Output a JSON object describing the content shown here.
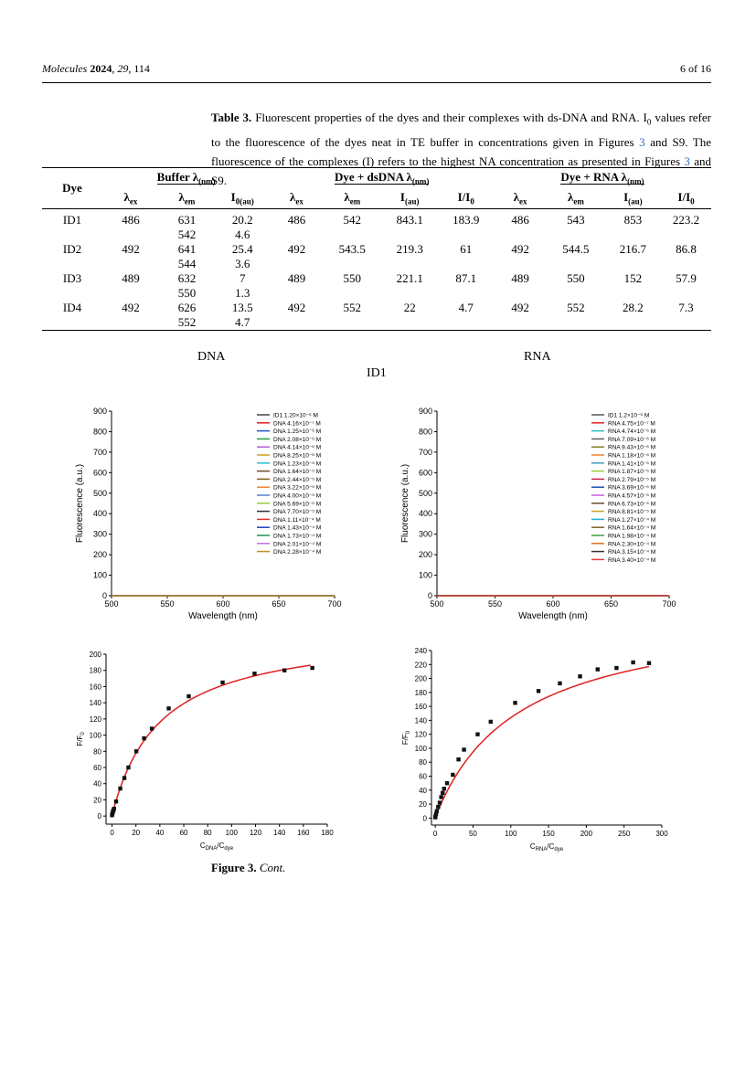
{
  "header": {
    "journal": "Molecules",
    "year": "2024",
    "volume": "29",
    "article": "114",
    "page": "6 of 16"
  },
  "caption": {
    "label": "Table 3.",
    "text1": " Fluorescent properties of the dyes and their complexes with ds-DNA and RNA. I",
    "sub0": "0",
    "text2": " values refer to the fluorescence of the dyes neat in TE buffer in concentrations given in Figures ",
    "ref1": "3",
    "text3": " and S9. The fluorescence of the complexes (I) refers to the highest NA concentration as presented in Figures ",
    "ref2": "3",
    "text4": " and S9."
  },
  "table": {
    "groups": [
      "Dye",
      "Buffer λ(nm)",
      "Dye + dsDNA λ(nm)",
      "Dye + RNA λ(nm)"
    ],
    "columns": [
      "λex",
      "λem",
      "I0(au)",
      "λex",
      "λem",
      "I(au)",
      "I/I0",
      "λex",
      "λem",
      "I(au)",
      "I/I0"
    ],
    "rows": [
      {
        "dye": "ID1",
        "b_ex": "486",
        "b_em": [
          "631",
          "542"
        ],
        "b_i0": [
          "20.2",
          "4.6"
        ],
        "d_ex": "486",
        "d_em": "542",
        "d_i": "843.1",
        "d_ratio": "183.9",
        "r_ex": "486",
        "r_em": "543",
        "r_i": "853",
        "r_ratio": "223.2"
      },
      {
        "dye": "ID2",
        "b_ex": "492",
        "b_em": [
          "641",
          "544"
        ],
        "b_i0": [
          "25.4",
          "3.6"
        ],
        "d_ex": "492",
        "d_em": "543.5",
        "d_i": "219.3",
        "d_ratio": "61",
        "r_ex": "492",
        "r_em": "544.5",
        "r_i": "216.7",
        "r_ratio": "86.8"
      },
      {
        "dye": "ID3",
        "b_ex": "489",
        "b_em": [
          "632",
          "550"
        ],
        "b_i0": [
          "7",
          "1.3"
        ],
        "d_ex": "489",
        "d_em": "550",
        "d_i": "221.1",
        "d_ratio": "87.1",
        "r_ex": "489",
        "r_em": "550",
        "r_i": "152",
        "r_ratio": "57.9"
      },
      {
        "dye": "ID4",
        "b_ex": "492",
        "b_em": [
          "626",
          "552"
        ],
        "b_i0": [
          "13.5",
          "4.7"
        ],
        "d_ex": "492",
        "d_em": "552",
        "d_i": "22",
        "d_ratio": "4.7",
        "r_ex": "492",
        "r_em": "552",
        "r_i": "28.2",
        "r_ratio": "7.3"
      }
    ]
  },
  "figure_labels": {
    "left": "DNA",
    "right": "RNA",
    "center": "ID1"
  },
  "figure_caption": {
    "label": "Figure 3.",
    "text": "Cont."
  },
  "chart_data": [
    {
      "type": "line",
      "xlabel": "Wavelength (nm)",
      "ylabel": "Fluorescence (a.u.)",
      "xlim": [
        500,
        700
      ],
      "ylim": [
        0,
        900
      ],
      "xticks": [
        500,
        550,
        600,
        650,
        700
      ],
      "yticks": [
        0,
        100,
        200,
        300,
        400,
        500,
        600,
        700,
        800,
        900
      ],
      "peak_x": 542,
      "legend": "top-right",
      "series": [
        {
          "name": "ID1 1.20×10⁻⁶ M",
          "peak": 20,
          "color": "#444444"
        },
        {
          "name": "DNA 4.16×10⁻⁷ M",
          "peak": 35,
          "color": "#e02020"
        },
        {
          "name": "DNA 1.25×10⁻⁶ M",
          "peak": 50,
          "color": "#2050d0"
        },
        {
          "name": "DNA 2.08×10⁻⁶ M",
          "peak": 65,
          "color": "#20a040"
        },
        {
          "name": "DNA 4.14×10⁻⁶ M",
          "peak": 80,
          "color": "#b060d0"
        },
        {
          "name": "DNA 8.25×10⁻⁶ M",
          "peak": 150,
          "color": "#d0a020"
        },
        {
          "name": "DNA 1.23×10⁻⁵ M",
          "peak": 215,
          "color": "#20c0d0"
        },
        {
          "name": "DNA 1.64×10⁻⁵ M",
          "peak": 275,
          "color": "#6b4a2a"
        },
        {
          "name": "DNA 2.44×10⁻⁵ M",
          "peak": 370,
          "color": "#806010"
        },
        {
          "name": "DNA 3.22×10⁻⁵ M",
          "peak": 435,
          "color": "#f08030"
        },
        {
          "name": "DNA 4.00×10⁻⁵ M",
          "peak": 500,
          "color": "#5080d0"
        },
        {
          "name": "DNA 5.69×10⁻⁵ M",
          "peak": 610,
          "color": "#90d040"
        },
        {
          "name": "DNA 7.70×10⁻⁵ M",
          "peak": 680,
          "color": "#303030"
        },
        {
          "name": "DNA 1.11×10⁻⁴ M",
          "peak": 760,
          "color": "#e03030"
        },
        {
          "name": "DNA 1.43×10⁻⁴ M",
          "peak": 810,
          "color": "#2040c0"
        },
        {
          "name": "DNA 1.73×10⁻⁴ M",
          "peak": 830,
          "color": "#209050"
        },
        {
          "name": "DNA 2.01×10⁻⁴ M",
          "peak": 840,
          "color": "#c070e0"
        },
        {
          "name": "DNA 2.28×10⁻⁴ M",
          "peak": 845,
          "color": "#c09020"
        }
      ]
    },
    {
      "type": "line",
      "xlabel": "Wavelength (nm)",
      "ylabel": "Fluorescence (a.u.)",
      "xlim": [
        500,
        700
      ],
      "ylim": [
        0,
        900
      ],
      "xticks": [
        500,
        550,
        600,
        650,
        700
      ],
      "yticks": [
        0,
        100,
        200,
        300,
        400,
        500,
        600,
        700,
        800,
        900
      ],
      "peak_x": 543,
      "legend": "top-right",
      "series": [
        {
          "name": "ID1   1.2×10⁻⁶ M",
          "peak": 20,
          "color": "#555555"
        },
        {
          "name": "RNA 4.75×10⁻⁷ M",
          "peak": 30,
          "color": "#e02020"
        },
        {
          "name": "RNA 4.74×10⁻⁶ M",
          "peak": 45,
          "color": "#20c0c0"
        },
        {
          "name": "RNA 7.09×10⁻⁶ M",
          "peak": 60,
          "color": "#606060"
        },
        {
          "name": "RNA 9.43×10⁻⁶ M",
          "peak": 75,
          "color": "#808020"
        },
        {
          "name": "RNA 1.18×10⁻⁵ M",
          "peak": 90,
          "color": "#f08030"
        },
        {
          "name": "RNA 1.41×10⁻⁵ M",
          "peak": 110,
          "color": "#40a0c0"
        },
        {
          "name": "RNA 1.87×10⁻⁵ M",
          "peak": 135,
          "color": "#90d040"
        },
        {
          "name": "RNA 2.79×10⁻⁵ M",
          "peak": 160,
          "color": "#d02050"
        },
        {
          "name": "RNA 3.69×10⁻⁵ M",
          "peak": 200,
          "color": "#2050b0"
        },
        {
          "name": "RNA 4.57×10⁻⁵ M",
          "peak": 260,
          "color": "#c060e0"
        },
        {
          "name": "RNA 6.73×10⁻⁵ M",
          "peak": 320,
          "color": "#6b4a2a"
        },
        {
          "name": "RNA 8.81×10⁻⁵ M",
          "peak": 400,
          "color": "#d0a020"
        },
        {
          "name": "RNA 1.27×10⁻⁴ M",
          "peak": 470,
          "color": "#20b0d0"
        },
        {
          "name": "RNA 1.64×10⁻⁴ M",
          "peak": 530,
          "color": "#806030"
        },
        {
          "name": "RNA 1.98×10⁻⁴ M",
          "peak": 630,
          "color": "#40a040"
        },
        {
          "name": "RNA 2.30×10⁻⁴ M",
          "peak": 700,
          "color": "#e07020"
        },
        {
          "name": "RNA 3.15×10⁻⁴ M",
          "peak": 780,
          "color": "#333333"
        },
        {
          "name": "RNA 3.40×10⁻⁴ M",
          "peak": 855,
          "color": "#e04040"
        }
      ]
    },
    {
      "type": "scatter",
      "xlabel": "C_DNA/C_dye",
      "ylabel": "F/F0",
      "xlim": [
        -5,
        180
      ],
      "ylim": [
        -10,
        200
      ],
      "xticks": [
        0,
        20,
        40,
        60,
        80,
        100,
        120,
        140,
        160,
        180
      ],
      "yticks": [
        0,
        20,
        40,
        60,
        80,
        100,
        120,
        140,
        160,
        180,
        200
      ],
      "x": [
        0,
        0.3,
        0.7,
        1.1,
        1.7,
        3.4,
        6.9,
        10.3,
        13.7,
        20.3,
        26.8,
        33.3,
        47.4,
        64.2,
        92.5,
        119.2,
        144.2,
        167.5
      ],
      "y": [
        1,
        3,
        5,
        7,
        9,
        18,
        34,
        47,
        60,
        80,
        96,
        108,
        133,
        148,
        165,
        176,
        180,
        183
      ],
      "fit": {
        "type": "binding",
        "Fmax": 230,
        "K": 40
      }
    },
    {
      "type": "scatter",
      "xlabel": "C_RNA/C_dye",
      "ylabel": "F/F0",
      "xlim": [
        -5,
        300
      ],
      "ylim": [
        -10,
        240
      ],
      "xticks": [
        0,
        50,
        100,
        150,
        200,
        250,
        300
      ],
      "yticks": [
        0,
        20,
        40,
        60,
        80,
        100,
        120,
        140,
        160,
        180,
        200,
        220,
        240
      ],
      "x": [
        0,
        0.4,
        1.1,
        2.0,
        3.9,
        5.9,
        7.9,
        9.8,
        11.7,
        15.6,
        23.3,
        30.8,
        38.1,
        56.1,
        73.4,
        105.8,
        136.7,
        165,
        191.7,
        215,
        240,
        262,
        283
      ],
      "y": [
        1,
        3,
        6,
        10,
        16,
        22,
        30,
        36,
        42,
        50,
        62,
        84,
        98,
        120,
        138,
        165,
        182,
        193,
        203,
        213,
        215,
        223,
        222
      ],
      "fit": {
        "type": "binding",
        "Fmax": 300,
        "K": 110
      }
    }
  ]
}
